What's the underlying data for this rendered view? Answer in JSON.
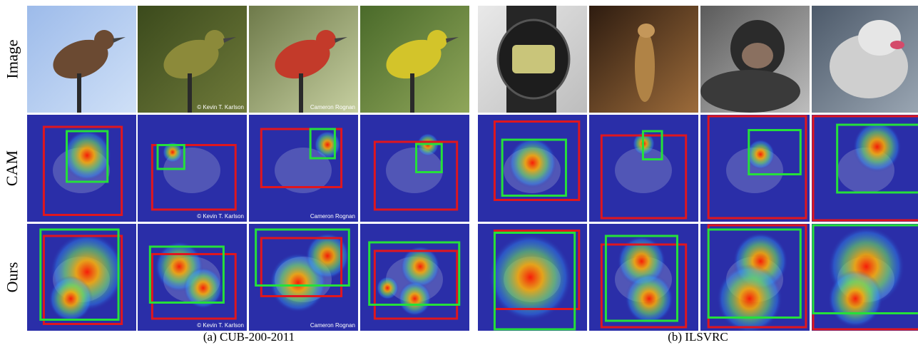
{
  "rows": [
    {
      "key": "image",
      "label": "Image"
    },
    {
      "key": "cam",
      "label": "CAM"
    },
    {
      "key": "ours",
      "label": "Ours"
    }
  ],
  "panels": [
    {
      "key": "cub",
      "caption": "(a)  CUB-200-2011",
      "subjects": [
        "cactus wren",
        "worm-eating warbler",
        "summer tanager",
        "yellow warbler"
      ],
      "watermarks": [
        "",
        "© Kevin T. Karlson",
        "Cameron Rognan",
        ""
      ]
    },
    {
      "key": "ilsvrc",
      "caption": "(b)  ILSVRC",
      "subjects": [
        "digital watch",
        "meerkat",
        "chimpanzee",
        "husky"
      ],
      "watermarks": [
        "",
        "",
        "",
        ""
      ]
    }
  ],
  "colors": {
    "ground_truth_box": "#e0161e",
    "predicted_box": "#25e03a",
    "heatmap_background": "#2a2ea8"
  }
}
